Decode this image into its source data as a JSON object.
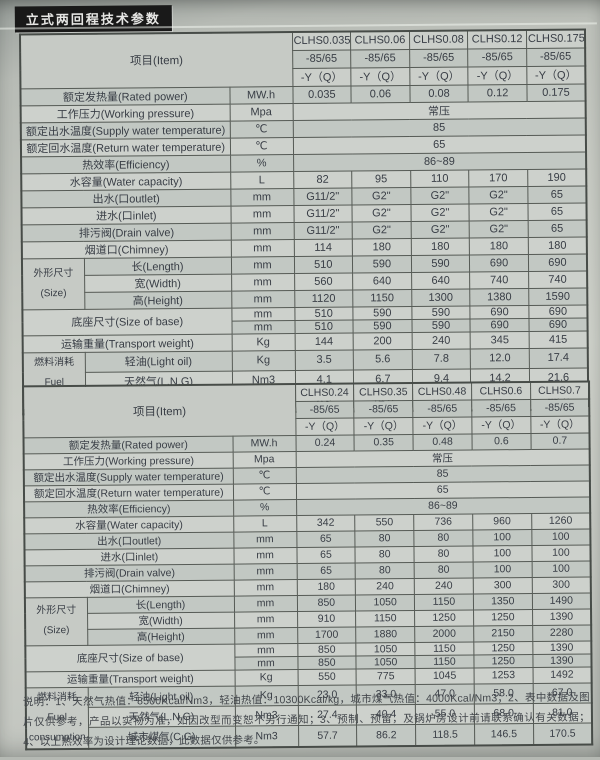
{
  "page": {
    "title": "立式两回程技术参数",
    "notes": "说明：1、天然气热值：8500Kcal/Nm3，轻油热值：10300Kcal/kg，城市煤气热值：4000Kcal/Nm3；2、表中数据及图片仅供参考，产品以实物为准，如因改型而变恕不另行通知；3、预制、预留，及锅炉房设计前请联系确认有关数据；4、以上热效率为设计理论数据，此数据仅供参考。",
    "colors": {
      "title_bg": "#191919",
      "title_text": "#e6e6e4",
      "table_line": "#565b56",
      "row_light": "#cdd1cc",
      "row_dark": "#c2c8c3",
      "text": "#383d45"
    }
  },
  "table_structure": {
    "item_header": "项目(Item)",
    "temp_range": "-85/65",
    "type_code": "-Y（Q）",
    "row_defs": [
      {
        "kind": "full",
        "label": "额定发热量(Rated power)",
        "unit": "MW.h"
      },
      {
        "kind": "full",
        "label": "工作压力(Working pressure)",
        "unit": "Mpa"
      },
      {
        "kind": "full",
        "label": "额定出水温度(Supply water temperature)",
        "unit": "℃"
      },
      {
        "kind": "full",
        "label": "额定回水温度(Return water temperature)",
        "unit": "℃"
      },
      {
        "kind": "full",
        "label": "热效率(Efficiency)",
        "unit": "%"
      },
      {
        "kind": "full",
        "label": "水容量(Water capacity)",
        "unit": "L"
      },
      {
        "kind": "full",
        "label": "出水(口outlet)",
        "unit": "mm"
      },
      {
        "kind": "full",
        "label": "进水(口inlet)",
        "unit": "mm"
      },
      {
        "kind": "full",
        "label": "排污阀(Drain valve)",
        "unit": "mm"
      },
      {
        "kind": "full",
        "label": "烟道口(Chimney)",
        "unit": "mm"
      },
      {
        "kind": "group-start",
        "group": "外形尺寸\n(Size)",
        "span": 3,
        "label": "长(Length)",
        "unit": "mm"
      },
      {
        "kind": "group-sub",
        "label": "宽(Width)",
        "unit": "mm"
      },
      {
        "kind": "group-sub",
        "label": "高(Height)",
        "unit": "mm"
      },
      {
        "kind": "base-start",
        "label": "底座尺寸(Size of base)",
        "span": 2,
        "unit": "mm"
      },
      {
        "kind": "base-sub",
        "unit": "mm"
      },
      {
        "kind": "full",
        "label": "运输重量(Transport weight)",
        "unit": "Kg"
      },
      {
        "kind": "group-start",
        "group": "燃料消耗Fuel\nconsumption",
        "span": 3,
        "label": "轻油(Light oil)",
        "unit": "Kg"
      },
      {
        "kind": "group-sub",
        "label": "天然气(L.N.G)",
        "unit": "Nm3"
      },
      {
        "kind": "group-sub",
        "label": "城市煤气(C.G)",
        "unit": "Nm3"
      }
    ]
  },
  "tables": [
    {
      "name": "small-models",
      "models": [
        "CLHS0.035",
        "CLHS0.06",
        "CLHS0.08",
        "CLHS0.12",
        "CLHS0.175"
      ],
      "values": [
        [
          "0.035",
          "0.06",
          "0.08",
          "0.12",
          "0.175"
        ],
        [
          "常压"
        ],
        [
          "85"
        ],
        [
          "65"
        ],
        [
          "86~89"
        ],
        [
          "82",
          "95",
          "110",
          "170",
          "190"
        ],
        [
          "G11/2\"",
          "G2\"",
          "G2\"",
          "G2\"",
          "65"
        ],
        [
          "G11/2\"",
          "G2\"",
          "G2\"",
          "G2\"",
          "65"
        ],
        [
          "G11/2\"",
          "G2\"",
          "G2\"",
          "G2\"",
          "65"
        ],
        [
          "114",
          "180",
          "180",
          "180",
          "180"
        ],
        [
          "510",
          "590",
          "590",
          "690",
          "690"
        ],
        [
          "560",
          "640",
          "640",
          "740",
          "740"
        ],
        [
          "1120",
          "1150",
          "1300",
          "1380",
          "1590"
        ],
        [
          "510",
          "590",
          "590",
          "690",
          "690"
        ],
        [
          "510",
          "590",
          "590",
          "690",
          "690"
        ],
        [
          "144",
          "200",
          "240",
          "345",
          "415"
        ],
        [
          "3.5",
          "5.6",
          "7.8",
          "12.0",
          "17.4"
        ],
        [
          "4.1",
          "6.7",
          "9.4",
          "14.2",
          "21.6"
        ],
        [
          "8.4",
          "14.6",
          "18.2",
          "30.5",
          "44.8"
        ]
      ]
    },
    {
      "name": "large-models",
      "models": [
        "CLHS0.24",
        "CLHS0.35",
        "CLHS0.48",
        "CLHS0.6",
        "CLHS0.7"
      ],
      "values": [
        [
          "0.24",
          "0.35",
          "0.48",
          "0.6",
          "0.7"
        ],
        [
          "常压"
        ],
        [
          "85"
        ],
        [
          "65"
        ],
        [
          "86~89"
        ],
        [
          "342",
          "550",
          "736",
          "960",
          "1260"
        ],
        [
          "65",
          "80",
          "80",
          "100",
          "100"
        ],
        [
          "65",
          "80",
          "80",
          "100",
          "100"
        ],
        [
          "65",
          "80",
          "80",
          "100",
          "100"
        ],
        [
          "180",
          "240",
          "240",
          "300",
          "300"
        ],
        [
          "850",
          "1050",
          "1150",
          "1350",
          "1490"
        ],
        [
          "910",
          "1150",
          "1250",
          "1250",
          "1390"
        ],
        [
          "1700",
          "1880",
          "2000",
          "2150",
          "2280"
        ],
        [
          "850",
          "1050",
          "1150",
          "1250",
          "1390"
        ],
        [
          "850",
          "1050",
          "1150",
          "1250",
          "1390"
        ],
        [
          "550",
          "775",
          "1045",
          "1253",
          "1492"
        ],
        [
          "23.0",
          "33.0",
          "47.0",
          "58.0",
          "67.0"
        ],
        [
          "27.4",
          "40.4",
          "55.0",
          "68.0",
          "81.0"
        ],
        [
          "57.7",
          "86.2",
          "118.5",
          "146.5",
          "170.5"
        ]
      ]
    }
  ]
}
